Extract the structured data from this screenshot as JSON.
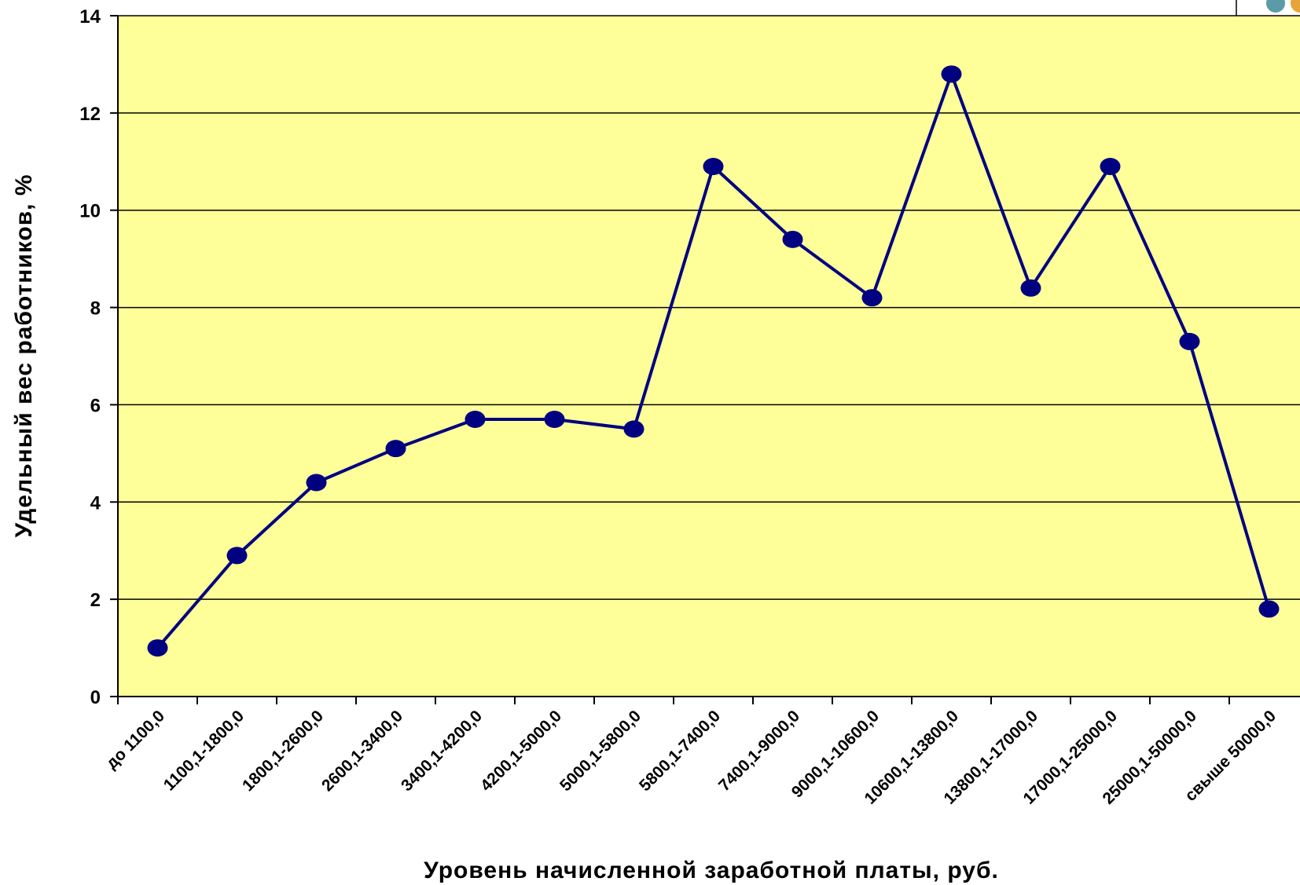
{
  "chart_data": {
    "type": "line",
    "categories": [
      "до 1100,0",
      "1100,1-1800,0",
      "1800,1-2600,0",
      "2600,1-3400,0",
      "3400,1-4200,0",
      "4200,1-5000,0",
      "5000,1-5800,0",
      "5800,1-7400,0",
      "7400,1-9000,0",
      "9000,1-10600,0",
      "10600,1-13800,0",
      "13800,1-17000,0",
      "17000,1-25000,0",
      "25000,1-50000,0",
      "свыше 50000,0"
    ],
    "values": [
      1.0,
      2.9,
      4.4,
      5.1,
      5.7,
      5.7,
      5.5,
      10.9,
      9.4,
      8.2,
      12.8,
      8.4,
      10.9,
      7.3,
      1.8
    ],
    "ylim": [
      0,
      14
    ],
    "yticks": [
      0,
      2,
      4,
      6,
      8,
      10,
      12,
      14
    ],
    "xlabel": "Уровень начисленной заработной платы, руб.",
    "ylabel": "Удельный вес работников, %",
    "grid": true,
    "colors": {
      "plot_background": "#FFFF99",
      "line": "#000080",
      "marker": "#000080",
      "grid": "#000000"
    }
  },
  "decoration": {
    "corner_dot_colors": [
      "#5B9BA8",
      "#E8A33A"
    ]
  }
}
